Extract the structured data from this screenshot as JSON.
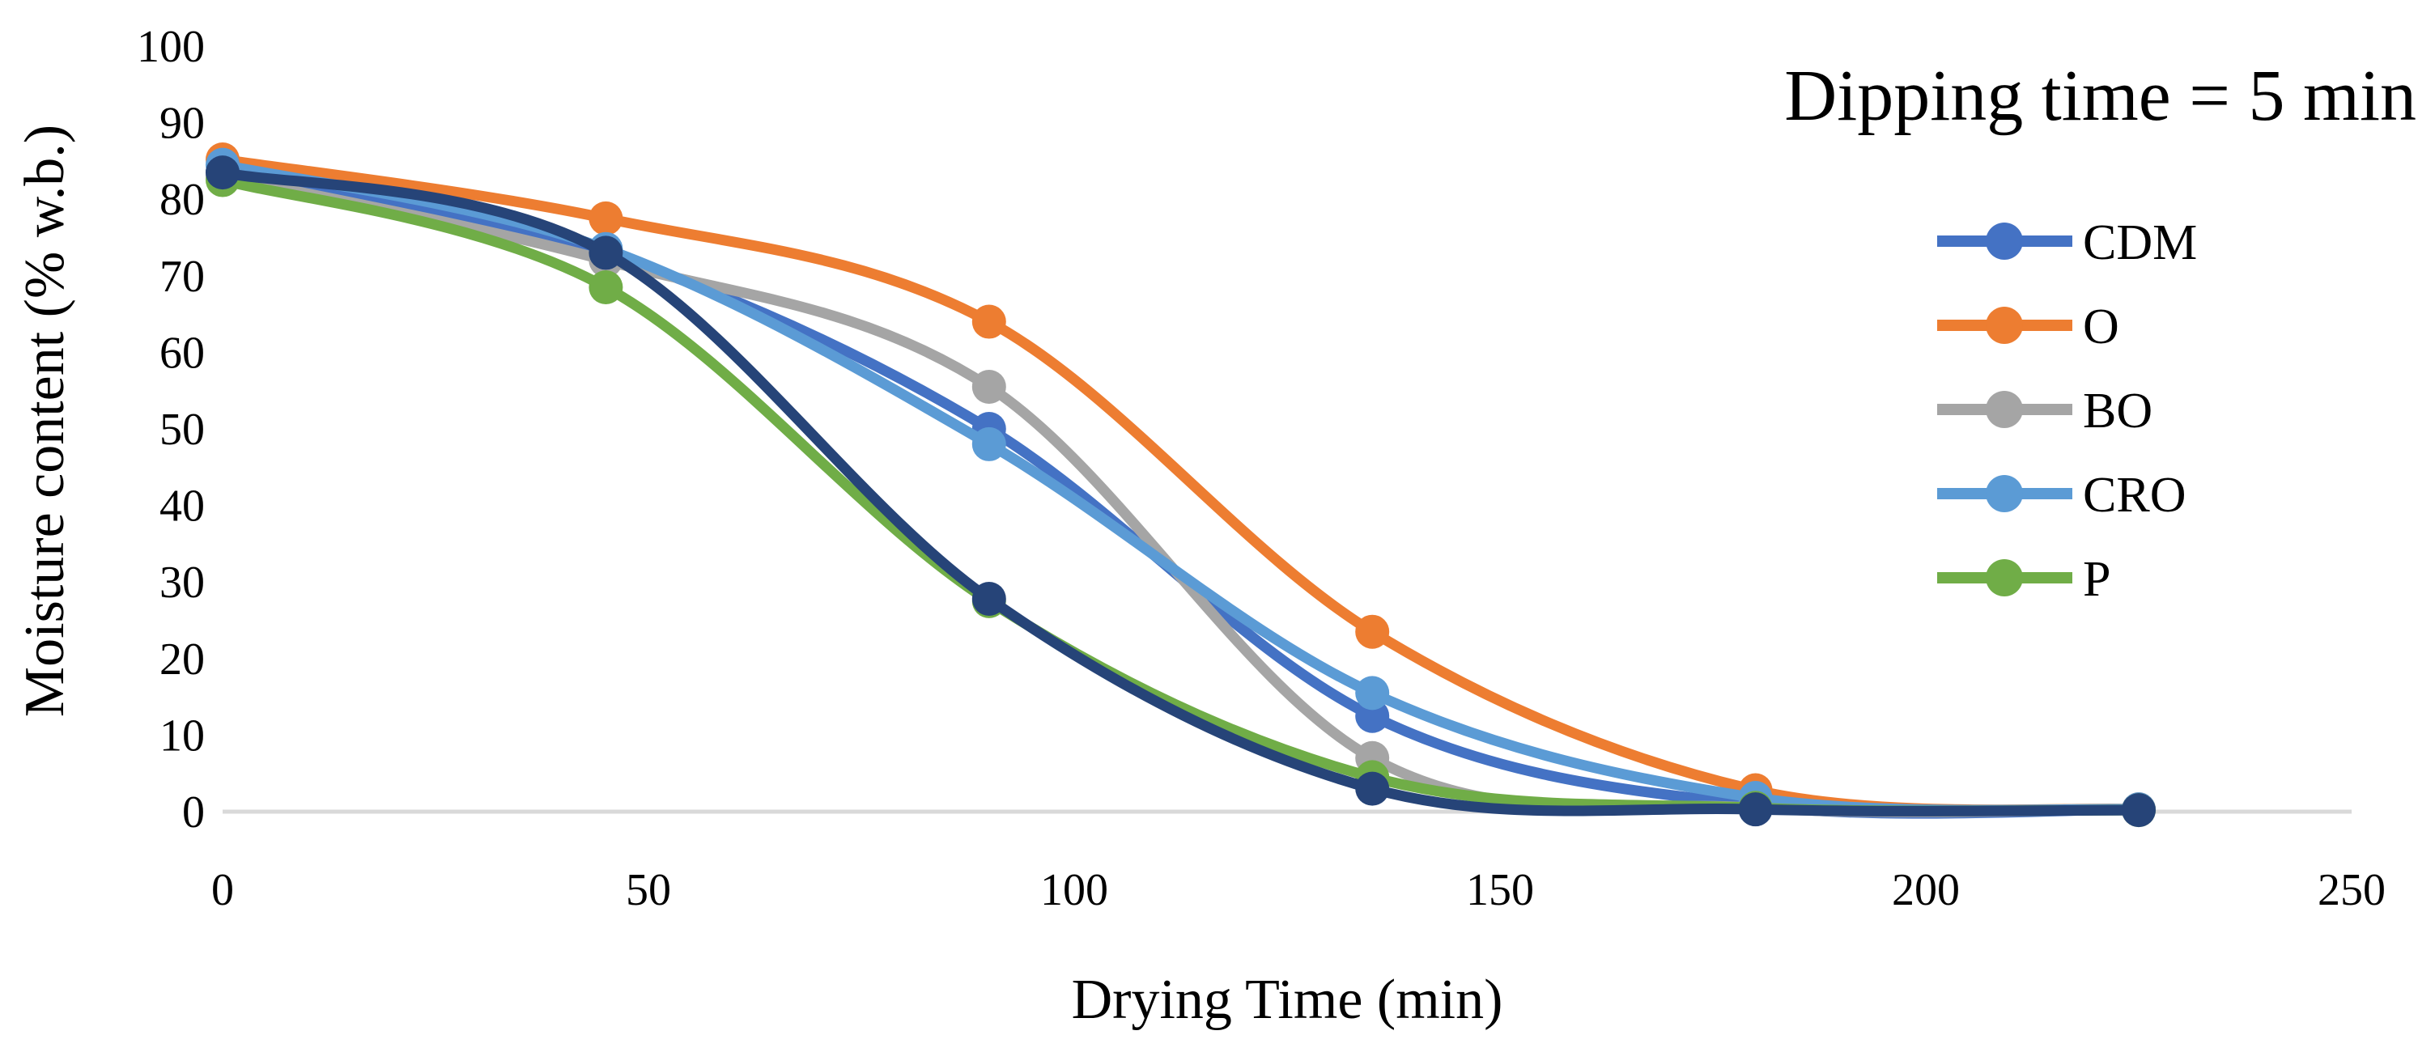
{
  "chart_data": {
    "type": "line",
    "title": "Dipping time = 5 min",
    "xlabel": "Drying Time (min)",
    "ylabel": "Moisture content (% w.b.)",
    "xlim": [
      0,
      250
    ],
    "ylim": [
      0,
      100
    ],
    "x_ticks": [
      "0",
      "50",
      "100",
      "150",
      "200",
      "250"
    ],
    "y_ticks": [
      "0",
      "10",
      "20",
      "30",
      "40",
      "50",
      "60",
      "70",
      "80",
      "90",
      "100"
    ],
    "grid": false,
    "legend_position": "right",
    "x": [
      0,
      45,
      90,
      135,
      180,
      225
    ],
    "series": [
      {
        "name": "CDM",
        "color": "#4472C4",
        "values": [
          83.5,
          73.0,
          50.0,
          12.5,
          0.8,
          0.3
        ]
      },
      {
        "name": "O",
        "color": "#ED7D31",
        "values": [
          85.2,
          77.5,
          64.0,
          23.5,
          2.8,
          0.3
        ]
      },
      {
        "name": "BO",
        "color": "#A5A5A5",
        "values": [
          83.0,
          72.0,
          55.5,
          7.0,
          0.5,
          0.3
        ]
      },
      {
        "name": "CRO",
        "color": "#5B9BD5",
        "values": [
          84.5,
          73.5,
          48.0,
          15.5,
          1.8,
          0.3
        ]
      },
      {
        "name": "P",
        "color": "#70AD47",
        "values": [
          82.5,
          68.5,
          27.5,
          4.5,
          0.5,
          0.2
        ]
      },
      {
        "name": "",
        "color": "#264478",
        "values": [
          83.5,
          73.0,
          27.8,
          3.0,
          0.3,
          0.2
        ]
      }
    ]
  }
}
